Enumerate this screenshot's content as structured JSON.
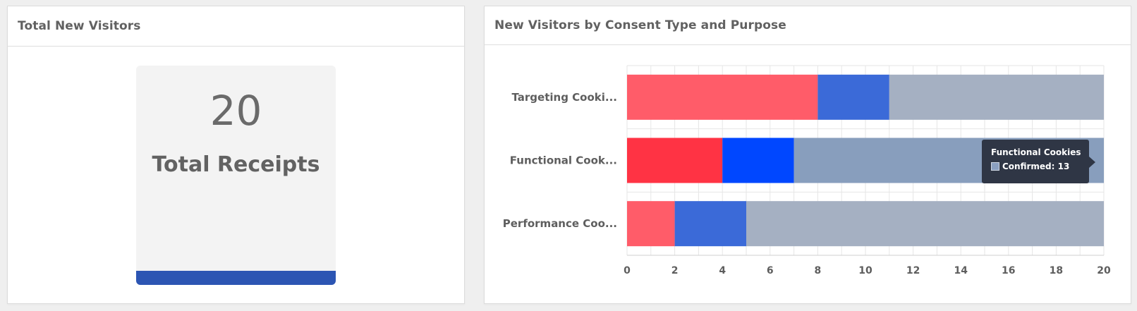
{
  "left_panel": {
    "title": "Total New Visitors",
    "stat_value": "20",
    "stat_label": "Total Receipts",
    "bar_color": "#2c55b3"
  },
  "right_panel": {
    "title": "New Visitors by Consent Type and Purpose"
  },
  "chart_data": {
    "type": "bar",
    "orientation": "horizontal",
    "stacked": true,
    "categories": [
      "Targeting Cooki...",
      "Functional Cook...",
      "Performance Coo..."
    ],
    "series": [
      {
        "values": [
          8,
          4,
          2
        ],
        "color": "#ff5c69",
        "hover_color": "#ff3344"
      },
      {
        "values": [
          3,
          3,
          3
        ],
        "color": "#3b6ad8",
        "hover_color": "#0047ff"
      },
      {
        "name": "Confirmed",
        "values": [
          9,
          13,
          15
        ],
        "color": "#a5b0c2",
        "hover_color": "#889ebd"
      }
    ],
    "xlim": [
      0,
      20
    ],
    "xticks": [
      0,
      2,
      4,
      6,
      8,
      10,
      12,
      14,
      16,
      18,
      20
    ],
    "grid": true,
    "highlighted_category_index": 1
  },
  "tooltip": {
    "title": "Functional Cookies",
    "row": "Confirmed: 13"
  }
}
